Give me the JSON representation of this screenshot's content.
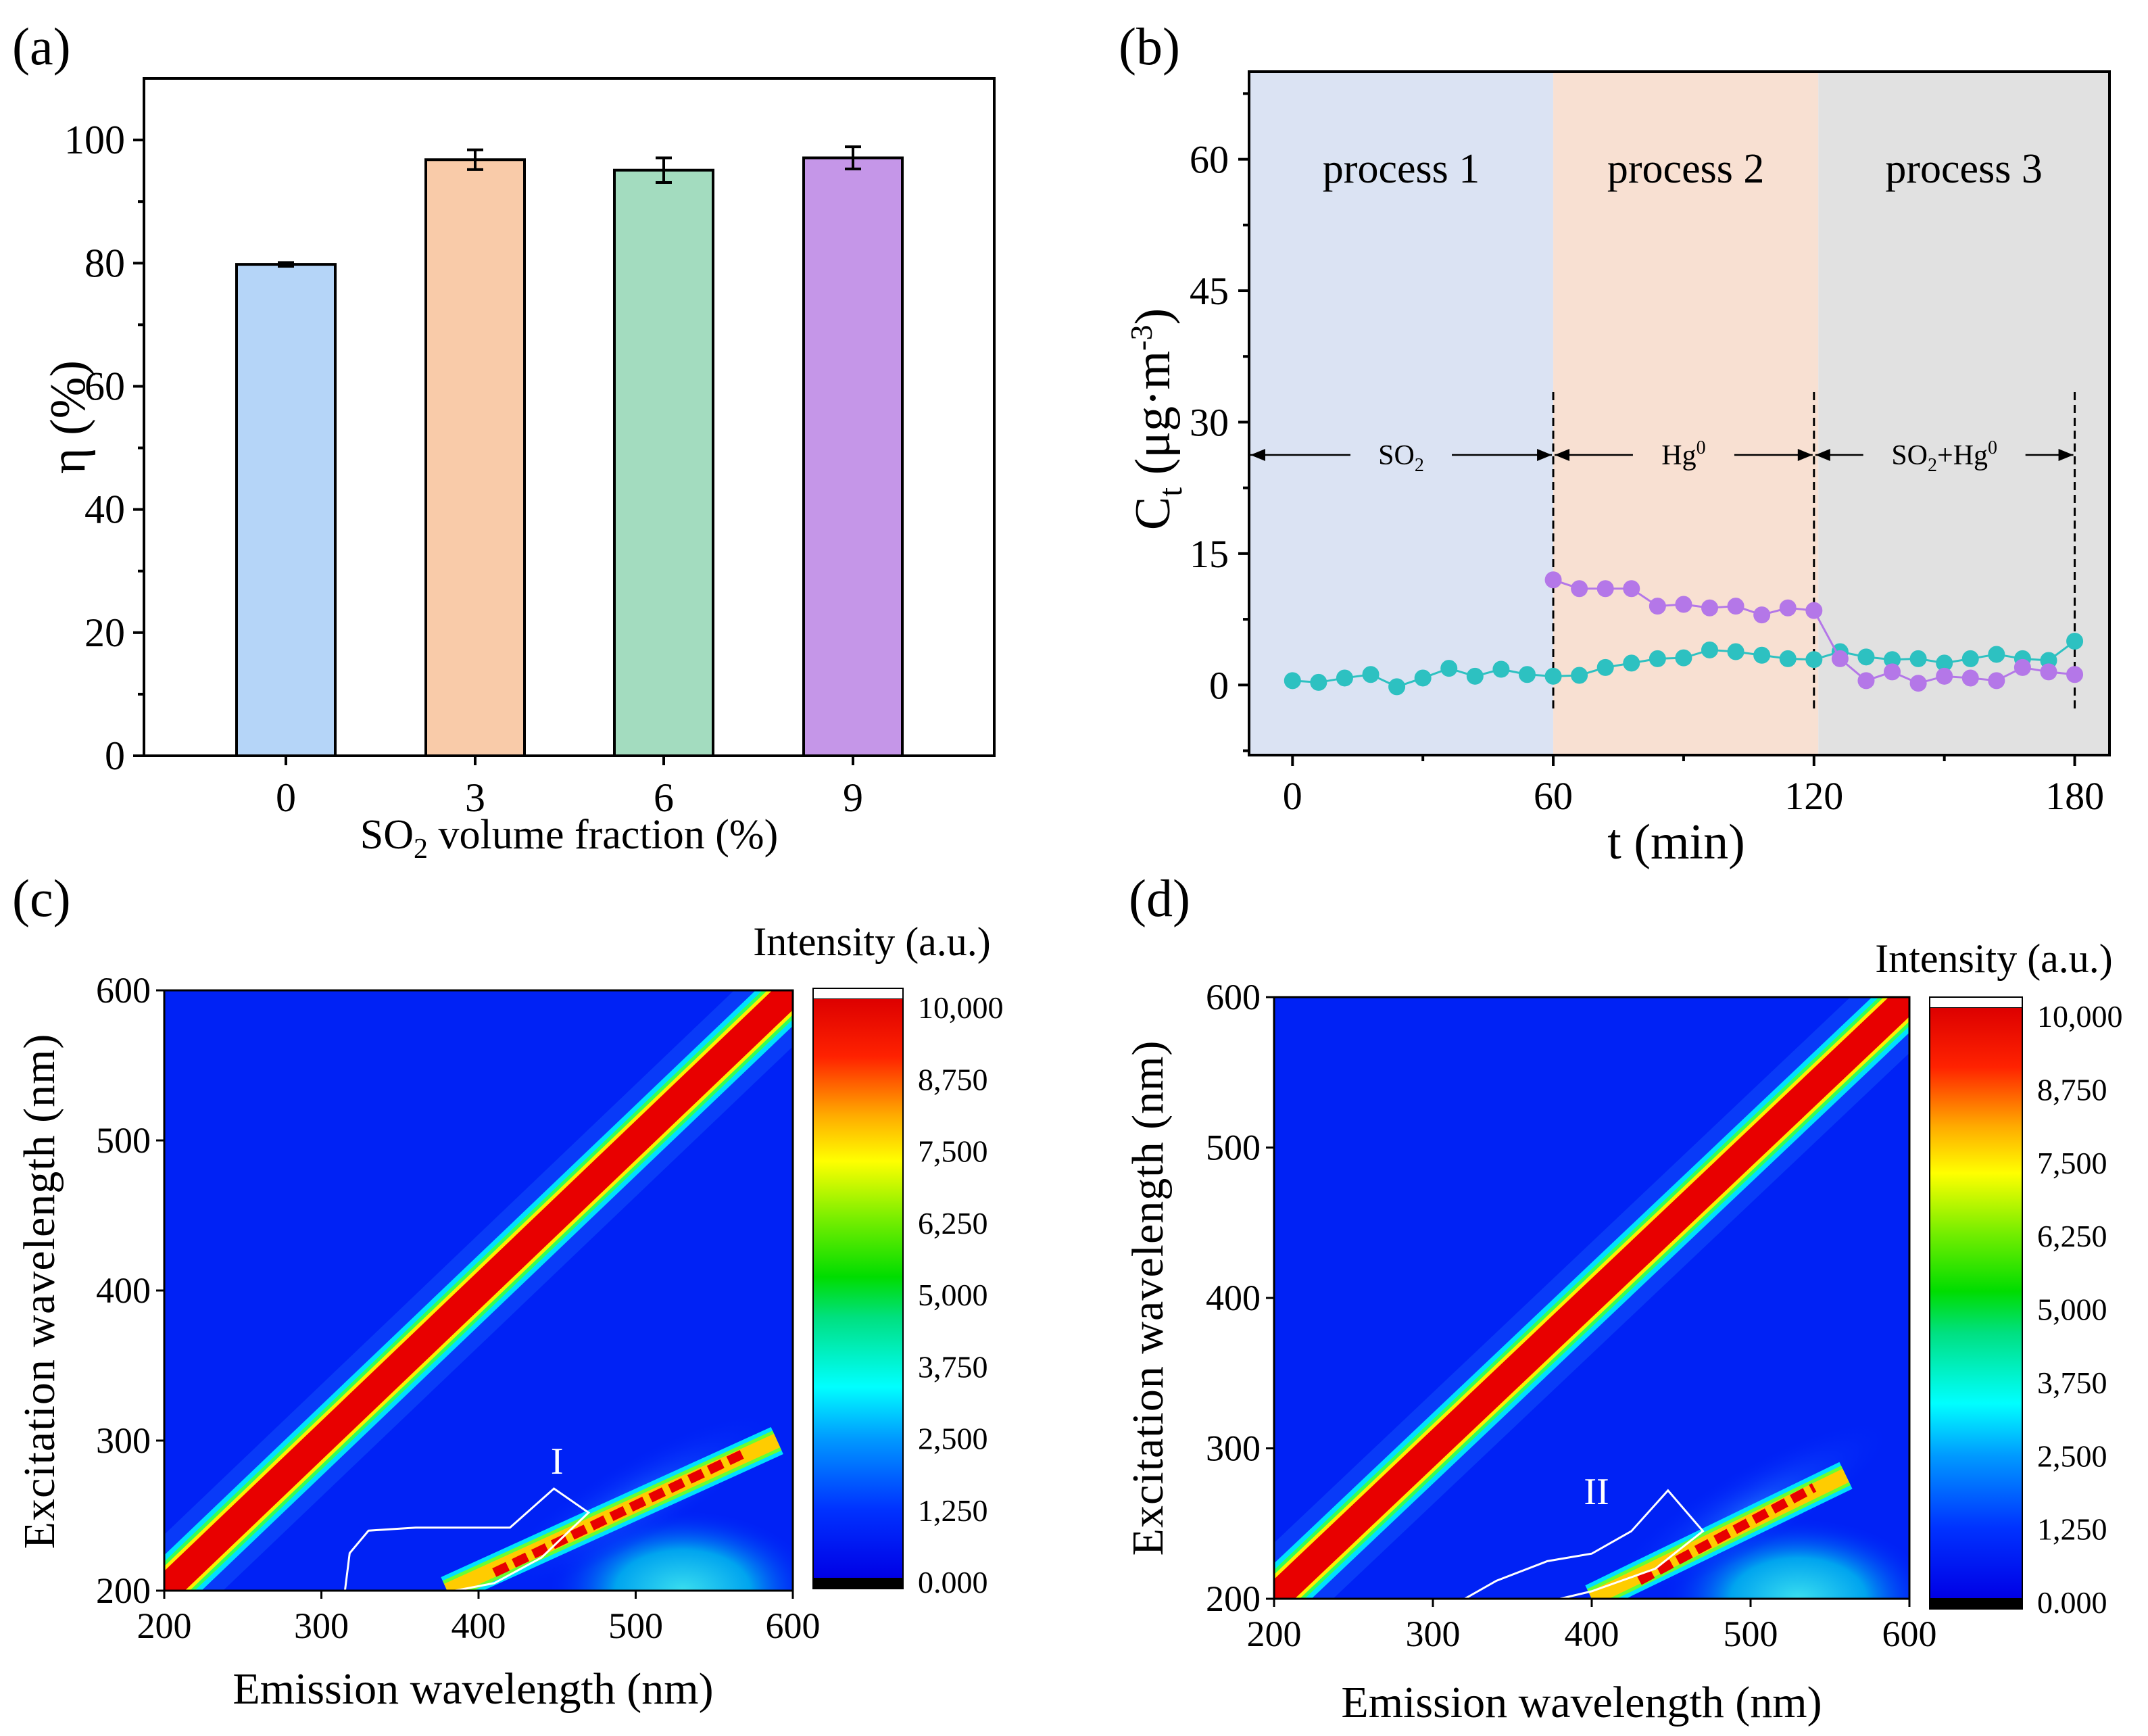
{
  "chart_data": [
    {
      "panel": "(a)",
      "type": "bar",
      "categories": [
        "0",
        "3",
        "6",
        "9"
      ],
      "values": [
        79.8,
        96.8,
        95.1,
        97.1
      ],
      "errors": [
        0.3,
        1.6,
        2.0,
        1.8
      ],
      "colors": [
        "#b5d5f8",
        "#f9cba9",
        "#a3dcbf",
        "#c596e8"
      ],
      "xlabel": "SO2 volume fraction (%)",
      "ylabel": "η (%)",
      "ylim": [
        0,
        110
      ],
      "yticks": [
        "0",
        "20",
        "40",
        "60",
        "80",
        "100"
      ]
    },
    {
      "panel": "(b)",
      "type": "line",
      "xlabel": "t (min)",
      "ylabel": "Ct (μg·m-3)",
      "xlim": [
        -10,
        188
      ],
      "ylim": [
        -8,
        70
      ],
      "xticks": [
        "0",
        "60",
        "120",
        "180"
      ],
      "yticks": [
        "0",
        "15",
        "30",
        "45",
        "60"
      ],
      "regions": [
        {
          "label": "process 1",
          "from": -10,
          "to": 60,
          "color": "#dbe3f3"
        },
        {
          "label": "process 2",
          "from": 60,
          "to": 121,
          "color": "#f8e0d2"
        },
        {
          "label": "process 3",
          "from": 121,
          "to": 188,
          "color": "#e1e1e1"
        }
      ],
      "arrows": [
        {
          "label": "SO2",
          "from": -10,
          "to": 60
        },
        {
          "label": "Hg0",
          "from": 60,
          "to": 120
        },
        {
          "label": "SO2+Hg0",
          "from": 120,
          "to": 180
        }
      ],
      "series": [
        {
          "name": "teal",
          "color": "#2dc1c1",
          "x": [
            0,
            6,
            12,
            18,
            24,
            30,
            36,
            42,
            48,
            54,
            60,
            66,
            72,
            78,
            84,
            90,
            96,
            102,
            108,
            114,
            120,
            126,
            132,
            138,
            144,
            150,
            156,
            162,
            168,
            174,
            180
          ],
          "y": [
            0.5,
            0.3,
            0.8,
            1.2,
            -0.2,
            0.8,
            1.9,
            1.0,
            1.8,
            1.2,
            1.0,
            1.1,
            2.0,
            2.5,
            3.0,
            3.1,
            4.0,
            3.8,
            3.4,
            3.0,
            2.9,
            3.8,
            3.2,
            2.9,
            3.0,
            2.5,
            3.0,
            3.5,
            3.0,
            2.8,
            5.0
          ]
        },
        {
          "name": "purple",
          "color": "#b477e8",
          "x": [
            60,
            66,
            72,
            78,
            84,
            90,
            96,
            102,
            108,
            114,
            120,
            126,
            132,
            138,
            144,
            150,
            156,
            162,
            168,
            174,
            180
          ],
          "y": [
            12.0,
            11.0,
            11.0,
            11.0,
            9.0,
            9.2,
            8.8,
            9.0,
            8.0,
            8.8,
            8.5,
            3.0,
            0.5,
            1.5,
            0.2,
            1.0,
            0.8,
            0.5,
            2.0,
            1.5,
            1.2
          ]
        }
      ]
    },
    {
      "panel": "(c)",
      "type": "heatmap",
      "xlabel": "Emission wavelength (nm)",
      "ylabel": "Excitation wavelength (nm)",
      "xlim": [
        200,
        600
      ],
      "ylim": [
        200,
        600
      ],
      "xticks": [
        "200",
        "300",
        "400",
        "500",
        "600"
      ],
      "yticks": [
        "200",
        "300",
        "400",
        "500",
        "600"
      ],
      "colorbar_title": "Intensity (a.u.)",
      "colorbar_ticks": [
        "10,000",
        "8,750",
        "7,500",
        "6,250",
        "5,000",
        "3,750",
        "2,500",
        "1,250",
        "0.000"
      ],
      "region_label": "I",
      "region_outline": [
        [
          315,
          200
        ],
        [
          318,
          225
        ],
        [
          330,
          240
        ],
        [
          360,
          242
        ],
        [
          420,
          242
        ],
        [
          448,
          268
        ],
        [
          470,
          252
        ],
        [
          440,
          222
        ],
        [
          410,
          205
        ],
        [
          385,
          200
        ]
      ]
    },
    {
      "panel": "(d)",
      "type": "heatmap",
      "xlabel": "Emission wavelength (nm)",
      "ylabel": "Excitation wavelength (nm)",
      "xlim": [
        200,
        600
      ],
      "ylim": [
        200,
        600
      ],
      "xticks": [
        "200",
        "300",
        "400",
        "500",
        "600"
      ],
      "yticks": [
        "200",
        "300",
        "400",
        "500",
        "600"
      ],
      "colorbar_title": "Intensity (a.u.)",
      "colorbar_ticks": [
        "10,000",
        "8,750",
        "7,500",
        "6,250",
        "5,000",
        "3,750",
        "2,500",
        "1,250",
        "0.000"
      ],
      "region_label": "II",
      "region_outline": [
        [
          320,
          200
        ],
        [
          340,
          212
        ],
        [
          372,
          225
        ],
        [
          400,
          230
        ],
        [
          425,
          245
        ],
        [
          448,
          272
        ],
        [
          470,
          245
        ],
        [
          440,
          220
        ],
        [
          400,
          205
        ],
        [
          380,
          200
        ]
      ]
    }
  ],
  "labels": {
    "a": "(a)",
    "b": "(b)",
    "c": "(c)",
    "d": "(d)"
  }
}
